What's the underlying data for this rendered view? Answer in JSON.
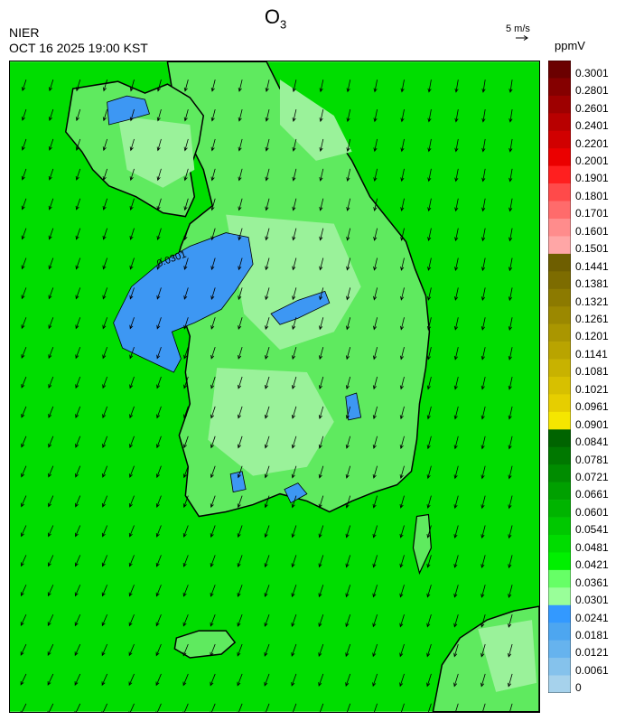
{
  "header": {
    "title_main": "O",
    "title_sub": "3",
    "agency": "NIER",
    "timestamp": "OCT 16 2025 19:00 KST"
  },
  "wind_reference": {
    "label": "5 m/s",
    "icon": "arrow-right-icon"
  },
  "colorbar": {
    "unit": "ppmV",
    "levels": [
      "0.3001",
      "0.2801",
      "0.2601",
      "0.2401",
      "0.2201",
      "0.2001",
      "0.1901",
      "0.1801",
      "0.1701",
      "0.1601",
      "0.1501",
      "0.1441",
      "0.1381",
      "0.1321",
      "0.1261",
      "0.1201",
      "0.1141",
      "0.1081",
      "0.1021",
      "0.0961",
      "0.0901",
      "0.0841",
      "0.0781",
      "0.0721",
      "0.0661",
      "0.0601",
      "0.0541",
      "0.0481",
      "0.0421",
      "0.0361",
      "0.0301",
      "0.0241",
      "0.0181",
      "0.0121",
      "0.0061",
      "0"
    ],
    "colors": [
      "#6b0000",
      "#850000",
      "#9e0000",
      "#b80000",
      "#d10000",
      "#eb0000",
      "#ff1f1f",
      "#ff4a4a",
      "#ff6b6b",
      "#ff8c8c",
      "#ffa6a6",
      "#6e5e00",
      "#7d6c00",
      "#8c7a00",
      "#9b8800",
      "#aa9600",
      "#b9a400",
      "#c8b200",
      "#d7c000",
      "#e6ce00",
      "#f5e600",
      "#006400",
      "#007800",
      "#008c00",
      "#00a000",
      "#00b400",
      "#00c800",
      "#00dc00",
      "#00f000",
      "#66ff66",
      "#99ff99",
      "#3399ff",
      "#4da6f0",
      "#66b3ee",
      "#85c2ec",
      "#a6d2ec"
    ]
  },
  "map": {
    "contour_label": "0.0301",
    "field_colors": {
      "sea": "#00dd00",
      "land": "#5fea5f",
      "land_light": "#9af29a",
      "low": "#3d97f3"
    }
  }
}
